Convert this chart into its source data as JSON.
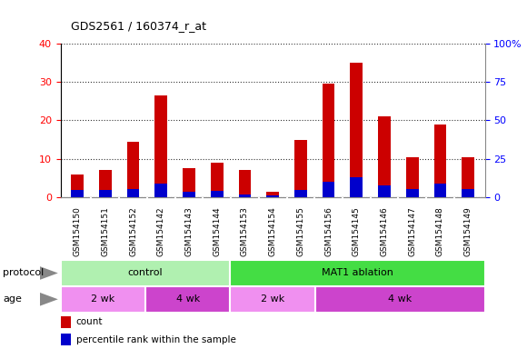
{
  "title": "GDS2561 / 160374_r_at",
  "samples": [
    "GSM154150",
    "GSM154151",
    "GSM154152",
    "GSM154142",
    "GSM154143",
    "GSM154144",
    "GSM154153",
    "GSM154154",
    "GSM154155",
    "GSM154156",
    "GSM154145",
    "GSM154146",
    "GSM154147",
    "GSM154148",
    "GSM154149"
  ],
  "count_values": [
    6,
    7,
    14.5,
    26.5,
    7.5,
    9,
    7,
    1.5,
    15,
    29.5,
    35,
    21,
    10.5,
    19,
    10.5
  ],
  "percentile_values": [
    4.5,
    5.0,
    5.5,
    9.0,
    3.5,
    4.0,
    2.0,
    1.2,
    4.5,
    10.0,
    13.0,
    7.5,
    5.5,
    9.0,
    5.5
  ],
  "left_ylim": [
    0,
    40
  ],
  "right_ylim": [
    0,
    100
  ],
  "left_yticks": [
    0,
    10,
    20,
    30,
    40
  ],
  "right_ytick_vals": [
    0,
    25,
    50,
    75,
    100
  ],
  "right_ytick_labels": [
    "0",
    "25",
    "50",
    "75",
    "100%"
  ],
  "bar_color_red": "#cc0000",
  "bar_color_blue": "#0000cc",
  "bar_width": 0.45,
  "bg_color": "#c8c8c8",
  "plot_bg": "#ffffff",
  "protocol_control_color": "#b0f0b0",
  "protocol_mat1_color": "#44dd44",
  "age_2wk_color": "#f090f0",
  "age_4wk_color": "#cc44cc",
  "protocol_label": "protocol",
  "age_label": "age",
  "control_label": "control",
  "mat1_label": "MAT1 ablation",
  "age_2wk_label": "2 wk",
  "age_4wk_label": "4 wk",
  "legend_count": "count",
  "legend_percentile": "percentile rank within the sample",
  "n_control": 6,
  "n_mat1": 9,
  "n_2wk_ctrl": 3,
  "n_4wk_ctrl": 3,
  "n_2wk_mat1": 3,
  "n_4wk_mat1": 6
}
